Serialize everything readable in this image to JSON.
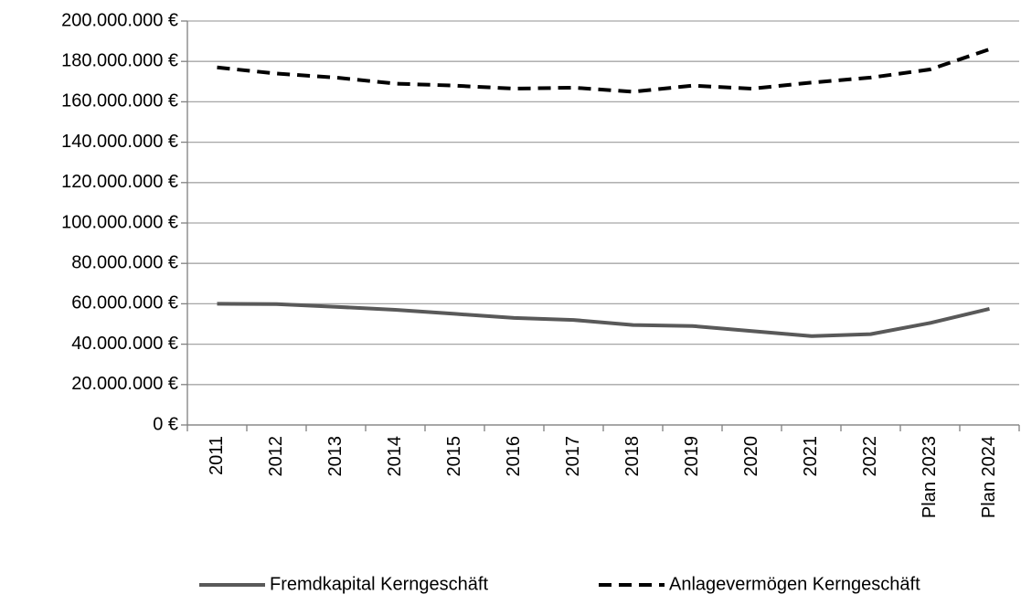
{
  "chart_data": {
    "type": "line",
    "categories": [
      "2011",
      "2012",
      "2013",
      "2014",
      "2015",
      "2016",
      "2017",
      "2018",
      "2019",
      "2020",
      "2021",
      "2022",
      "Plan 2023",
      "Plan 2024"
    ],
    "series": [
      {
        "name": "Fremdkapital Kerngeschäft",
        "color": "#595959",
        "dash": false,
        "values": [
          60000000,
          59800000,
          58500000,
          57000000,
          55000000,
          53000000,
          52000000,
          49500000,
          49000000,
          46500000,
          44000000,
          45000000,
          50500000,
          57500000
        ]
      },
      {
        "name": "Anlagevermögen Kerngeschäft",
        "color": "#000000",
        "dash": true,
        "values": [
          177000000,
          174000000,
          172000000,
          169000000,
          168000000,
          166500000,
          167000000,
          165000000,
          168000000,
          166500000,
          169500000,
          172000000,
          176000000,
          186000000
        ]
      }
    ],
    "ylim": [
      0,
      200000000
    ],
    "yticks": [
      {
        "value": 0,
        "label": "0 €"
      },
      {
        "value": 20000000,
        "label": "20.000.000 €"
      },
      {
        "value": 40000000,
        "label": "40.000.000 €"
      },
      {
        "value": 60000000,
        "label": "60.000.000 €"
      },
      {
        "value": 80000000,
        "label": "80.000.000 €"
      },
      {
        "value": 100000000,
        "label": "100.000.000 €"
      },
      {
        "value": 120000000,
        "label": "120.000.000 €"
      },
      {
        "value": 140000000,
        "label": "140.000.000 €"
      },
      {
        "value": 160000000,
        "label": "160.000.000 €"
      },
      {
        "value": 180000000,
        "label": "180.000.000 €"
      },
      {
        "value": 200000000,
        "label": "200.000.000 €"
      }
    ],
    "grid": true,
    "legend": "bottom"
  }
}
